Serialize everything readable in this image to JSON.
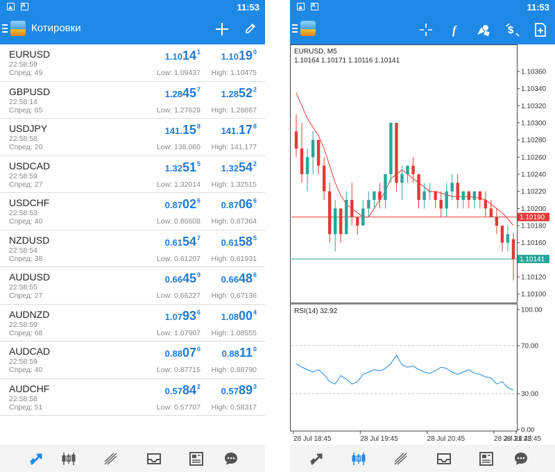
{
  "status_bar": {
    "time": "11:53"
  },
  "quotes_screen": {
    "title": "Котировки",
    "rows": [
      {
        "symbol": "EURUSD",
        "time": "22:58:59",
        "spread": "Спред: 49",
        "bid_pre": "1.10",
        "bid_big": "14",
        "bid_sup": "1",
        "ask_pre": "1.10",
        "ask_big": "19",
        "ask_sup": "0",
        "low": "Low: 1.09437",
        "high": "High: 1.10475"
      },
      {
        "symbol": "GBPUSD",
        "time": "22:58:14",
        "spread": "Спред: 65",
        "bid_pre": "1.28",
        "bid_big": "45",
        "bid_sup": "7",
        "ask_pre": "1.28",
        "ask_big": "52",
        "ask_sup": "2",
        "low": "Low: 1.27629",
        "high": "High: 1.28867"
      },
      {
        "symbol": "USDJPY",
        "time": "22:58:58",
        "spread": "Спред: 20",
        "bid_pre": "141.",
        "bid_big": "15",
        "bid_sup": "8",
        "ask_pre": "141.",
        "ask_big": "17",
        "ask_sup": "8",
        "low": "Low: 138.060",
        "high": "High: 141.177"
      },
      {
        "symbol": "USDCAD",
        "time": "22:58:59",
        "spread": "Спред: 27",
        "bid_pre": "1.32",
        "bid_big": "51",
        "bid_sup": "5",
        "ask_pre": "1.32",
        "ask_big": "54",
        "ask_sup": "2",
        "low": "Low: 1.32014",
        "high": "High: 1.32515"
      },
      {
        "symbol": "USDCHF",
        "time": "22:58:53",
        "spread": "Спред: 40",
        "bid_pre": "0.87",
        "bid_big": "02",
        "bid_sup": "6",
        "ask_pre": "0.87",
        "ask_big": "06",
        "ask_sup": "6",
        "low": "Low: 0.86608",
        "high": "High: 0.87364"
      },
      {
        "symbol": "NZDUSD",
        "time": "22:58:54",
        "spread": "Спред: 38",
        "bid_pre": "0.61",
        "bid_big": "54",
        "bid_sup": "7",
        "ask_pre": "0.61",
        "ask_big": "58",
        "ask_sup": "5",
        "low": "Low: 0.61207",
        "high": "High: 0.61931"
      },
      {
        "symbol": "AUDUSD",
        "time": "22:58:55",
        "spread": "Спред: 27",
        "bid_pre": "0.66",
        "bid_big": "45",
        "bid_sup": "9",
        "ask_pre": "0.66",
        "ask_big": "48",
        "ask_sup": "6",
        "low": "Low: 0.66227",
        "high": "High: 0.67136"
      },
      {
        "symbol": "AUDNZD",
        "time": "22:58:59",
        "spread": "Спред: 68",
        "bid_pre": "1.07",
        "bid_big": "93",
        "bid_sup": "6",
        "ask_pre": "1.08",
        "ask_big": "00",
        "ask_sup": "4",
        "low": "Low: 1.07907",
        "high": "High: 1.08555"
      },
      {
        "symbol": "AUDCAD",
        "time": "22:58:59",
        "spread": "Спред: 40",
        "bid_pre": "0.88",
        "bid_big": "07",
        "bid_sup": "0",
        "ask_pre": "0.88",
        "ask_big": "11",
        "ask_sup": "0",
        "low": "Low: 0.87715",
        "high": "High: 0.88790"
      },
      {
        "symbol": "AUDCHF",
        "time": "22:58:58",
        "spread": "Спред: 51",
        "bid_pre": "0.57",
        "bid_big": "84",
        "bid_sup": "2",
        "ask_pre": "0.57",
        "ask_big": "89",
        "ask_sup": "3",
        "low": "Low: 0.57707",
        "high": "High: 0.58317"
      }
    ]
  },
  "chart_screen": {
    "symbol_label": "EURUSD, M5",
    "ohlc_label": "1.10164 1.10171 1.10116 1.10141",
    "rsi_label": "RSI(14) 32.92"
  },
  "chart_data": {
    "type": "candlestick",
    "symbol": "EURUSD",
    "timeframe": "M5",
    "price_axis": {
      "ylim": [
        1.1009,
        1.1039
      ],
      "ticks": [
        "1.10360",
        "1.10340",
        "1.10320",
        "1.10300",
        "1.10280",
        "1.10260",
        "1.10240",
        "1.10220",
        "1.10200",
        "1.10180",
        "1.10160",
        "1.10140",
        "1.10120",
        "1.10100"
      ],
      "tick_values": [
        1.1036,
        1.1034,
        1.1032,
        1.103,
        1.1028,
        1.1026,
        1.1024,
        1.1022,
        1.102,
        1.1018,
        1.1016,
        1.1014,
        1.1012,
        1.101
      ]
    },
    "time_axis": {
      "ticks": [
        "28 Jul 18:45",
        "28 Jul 19:45",
        "28 Jul 20:45",
        "28 Jul 21:45",
        "28 Jul 22:45"
      ],
      "tick_index": [
        0,
        12,
        24,
        36,
        48
      ]
    },
    "price_lines": [
      {
        "value": 1.1019,
        "label": "1.10190",
        "color": "#e53935"
      },
      {
        "value": 1.10141,
        "label": "1.10141",
        "color": "#26a69a"
      }
    ],
    "candles": [
      {
        "o": 1.1029,
        "h": 1.1031,
        "l": 1.1026,
        "c": 1.1027
      },
      {
        "o": 1.1027,
        "h": 1.103,
        "l": 1.1023,
        "c": 1.1024
      },
      {
        "o": 1.1024,
        "h": 1.1027,
        "l": 1.1022,
        "c": 1.1026
      },
      {
        "o": 1.1026,
        "h": 1.1029,
        "l": 1.1024,
        "c": 1.1028
      },
      {
        "o": 1.1028,
        "h": 1.1028,
        "l": 1.1024,
        "c": 1.1025
      },
      {
        "o": 1.1025,
        "h": 1.1026,
        "l": 1.1021,
        "c": 1.1022
      },
      {
        "o": 1.1022,
        "h": 1.1023,
        "l": 1.1016,
        "c": 1.1017
      },
      {
        "o": 1.1017,
        "h": 1.1021,
        "l": 1.1015,
        "c": 1.102
      },
      {
        "o": 1.102,
        "h": 1.102,
        "l": 1.1016,
        "c": 1.1017
      },
      {
        "o": 1.1017,
        "h": 1.1022,
        "l": 1.1017,
        "c": 1.1021
      },
      {
        "o": 1.1021,
        "h": 1.1023,
        "l": 1.1018,
        "c": 1.1019
      },
      {
        "o": 1.1019,
        "h": 1.1019,
        "l": 1.1017,
        "c": 1.1018
      },
      {
        "o": 1.1018,
        "h": 1.1021,
        "l": 1.1018,
        "c": 1.102
      },
      {
        "o": 1.102,
        "h": 1.1022,
        "l": 1.1019,
        "c": 1.1021
      },
      {
        "o": 1.1021,
        "h": 1.1022,
        "l": 1.102,
        "c": 1.1022
      },
      {
        "o": 1.1022,
        "h": 1.1023,
        "l": 1.102,
        "c": 1.1021
      },
      {
        "o": 1.1021,
        "h": 1.1024,
        "l": 1.102,
        "c": 1.1024
      },
      {
        "o": 1.1024,
        "h": 1.103,
        "l": 1.1023,
        "c": 1.103
      },
      {
        "o": 1.103,
        "h": 1.103,
        "l": 1.1022,
        "c": 1.1023
      },
      {
        "o": 1.1023,
        "h": 1.1025,
        "l": 1.1021,
        "c": 1.1024
      },
      {
        "o": 1.1024,
        "h": 1.1025,
        "l": 1.1023,
        "c": 1.1025
      },
      {
        "o": 1.1025,
        "h": 1.1026,
        "l": 1.1023,
        "c": 1.1024
      },
      {
        "o": 1.1024,
        "h": 1.1024,
        "l": 1.102,
        "c": 1.1021
      },
      {
        "o": 1.1021,
        "h": 1.1023,
        "l": 1.102,
        "c": 1.1022
      },
      {
        "o": 1.1022,
        "h": 1.1023,
        "l": 1.1021,
        "c": 1.1022
      },
      {
        "o": 1.1022,
        "h": 1.1022,
        "l": 1.102,
        "c": 1.1021
      },
      {
        "o": 1.1021,
        "h": 1.1022,
        "l": 1.1019,
        "c": 1.102
      },
      {
        "o": 1.102,
        "h": 1.1023,
        "l": 1.1019,
        "c": 1.1022
      },
      {
        "o": 1.1022,
        "h": 1.1024,
        "l": 1.1021,
        "c": 1.1023
      },
      {
        "o": 1.1023,
        "h": 1.1024,
        "l": 1.102,
        "c": 1.1021
      },
      {
        "o": 1.1021,
        "h": 1.1022,
        "l": 1.102,
        "c": 1.1022
      },
      {
        "o": 1.1022,
        "h": 1.1022,
        "l": 1.102,
        "c": 1.1021
      },
      {
        "o": 1.1021,
        "h": 1.1022,
        "l": 1.102,
        "c": 1.1022
      },
      {
        "o": 1.1022,
        "h": 1.1022,
        "l": 1.102,
        "c": 1.1021
      },
      {
        "o": 1.1021,
        "h": 1.1022,
        "l": 1.1019,
        "c": 1.102
      },
      {
        "o": 1.102,
        "h": 1.1021,
        "l": 1.1019,
        "c": 1.1019
      },
      {
        "o": 1.1019,
        "h": 1.102,
        "l": 1.1017,
        "c": 1.1018
      },
      {
        "o": 1.1018,
        "h": 1.1018,
        "l": 1.1015,
        "c": 1.1016
      },
      {
        "o": 1.1016,
        "h": 1.1018,
        "l": 1.1015,
        "c": 1.1017
      },
      {
        "o": 1.10164,
        "h": 1.10171,
        "l": 1.10116,
        "c": 1.10141
      }
    ],
    "ma_line": [
      1.10335,
      1.1032,
      1.10305,
      1.10295,
      1.10285,
      1.1027,
      1.1025,
      1.1023,
      1.10215,
      1.10205,
      1.102,
      1.10195,
      1.1019,
      1.1019,
      1.102,
      1.1021,
      1.1022,
      1.10235,
      1.1024,
      1.10245,
      1.1024,
      1.10235,
      1.1023,
      1.10225,
      1.1022,
      1.1022,
      1.10218,
      1.10216,
      1.10214,
      1.10214,
      1.10214,
      1.10214,
      1.10213,
      1.10212,
      1.1021,
      1.10205,
      1.102,
      1.10195,
      1.10188,
      1.1018
    ],
    "rsi": {
      "name": "RSI(14)",
      "value": 32.92,
      "ylim": [
        0,
        100
      ],
      "levels": [
        70,
        30
      ],
      "ticks": [
        "100.00",
        "70.00",
        "30.00",
        "0.00"
      ],
      "values": [
        55,
        52,
        50,
        48,
        50,
        46,
        40,
        38,
        45,
        42,
        38,
        40,
        46,
        48,
        50,
        49,
        51,
        55,
        62,
        54,
        52,
        53,
        50,
        48,
        47,
        49,
        52,
        51,
        48,
        46,
        48,
        50,
        47,
        46,
        44,
        43,
        38,
        40,
        35,
        33
      ]
    }
  },
  "colors": {
    "accent": "#1e88e5",
    "bull": "#26a69a",
    "bear": "#e53935",
    "rsi_line": "#1e88e5",
    "ma_line": "#e53935"
  },
  "nav_icons_left": [
    "trade-icon",
    "candles-icon",
    "trend-icon",
    "inbox-icon",
    "news-icon",
    "chat-icon"
  ],
  "nav_icons_right": [
    "trade-icon",
    "candles-icon",
    "trend-icon",
    "inbox-icon",
    "news-icon",
    "chat-icon"
  ]
}
